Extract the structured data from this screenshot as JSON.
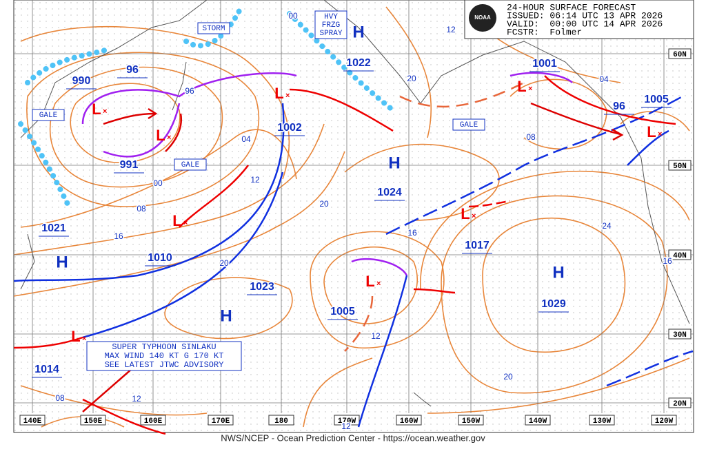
{
  "header": {
    "title": "24-HOUR SURFACE FORECAST",
    "issued": "ISSUED: 06:14 UTC 13 APR 2026",
    "valid": "VALID:  00:00 UTC 14 APR 2026",
    "forecaster": "FCSTR:  Folmer",
    "logo": "NOAA"
  },
  "footer": "NWS/NCEP - Ocean Prediction Center - https://ocean.weather.gov",
  "grid": {
    "longitudes": [
      "140E",
      "150E",
      "160E",
      "170E",
      "180",
      "170W",
      "160W",
      "150W",
      "140W",
      "130W",
      "120W"
    ],
    "latitudes": [
      "60N",
      "50N",
      "40N",
      "30N",
      "20N"
    ]
  },
  "high_symbols": [
    "H",
    "H",
    "H",
    "H",
    "H"
  ],
  "low_symbols": [
    "L",
    "L",
    "L",
    "L",
    "L",
    "L",
    "L",
    "L",
    "L"
  ],
  "pressure_labels": [
    "990",
    "96",
    "991",
    "1002",
    "1022",
    "1001",
    "1005",
    "96",
    "1024",
    "1021",
    "1010",
    "1023",
    "1005",
    "1017",
    "1029",
    "1014"
  ],
  "isobar_labels": [
    "00",
    "12",
    "20",
    "04",
    "08",
    "04",
    "12",
    "00",
    "08",
    "16",
    "20",
    "16",
    "24",
    "16",
    "20",
    "12",
    "20",
    "08",
    "12",
    "12",
    "96"
  ],
  "warnings": [
    [
      "STORM"
    ],
    [
      "HVY",
      "FRZG",
      "SPRAY"
    ],
    [
      "GALE"
    ],
    [
      "GALE"
    ],
    [
      "GALE"
    ]
  ],
  "advisory": [
    "SUPER TYPHOON SINLAKU",
    "MAX WIND 140 KT G 170 KT",
    "SEE LATEST JTWC ADVISORY"
  ]
}
